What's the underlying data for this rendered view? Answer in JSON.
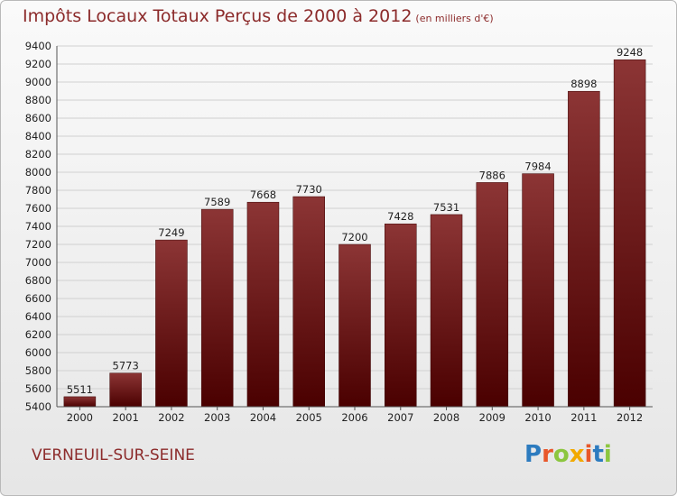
{
  "header": {
    "title": "Impôts Locaux Totaux Perçus de 2000 à 2012",
    "unit": "(en milliers d'€)"
  },
  "footer": {
    "place": "VERNEUIL-SUR-SEINE",
    "logo": "Proxiti",
    "logo_colors": [
      "#2c7bbf",
      "#e8572a",
      "#8cc63f",
      "#f2a900",
      "#e8572a",
      "#2c7bbf",
      "#8cc63f"
    ]
  },
  "colors": {
    "bar_top": "#8c3535",
    "bar_bottom": "#4a0000",
    "grid": "#d0d0d0",
    "title": "#8c2b2b"
  },
  "chart_data": {
    "type": "bar",
    "categories": [
      "2000",
      "2001",
      "2002",
      "2003",
      "2004",
      "2005",
      "2006",
      "2007",
      "2008",
      "2009",
      "2010",
      "2011",
      "2012"
    ],
    "values": [
      5511,
      5773,
      7249,
      7589,
      7668,
      7730,
      7200,
      7428,
      7531,
      7886,
      7984,
      8898,
      9248
    ],
    "ylim": [
      5400,
      9400
    ],
    "ytick_step": 200,
    "grid": true,
    "title": "Impôts Locaux Totaux Perçus de 2000 à 2012",
    "xlabel": "",
    "ylabel": ""
  }
}
